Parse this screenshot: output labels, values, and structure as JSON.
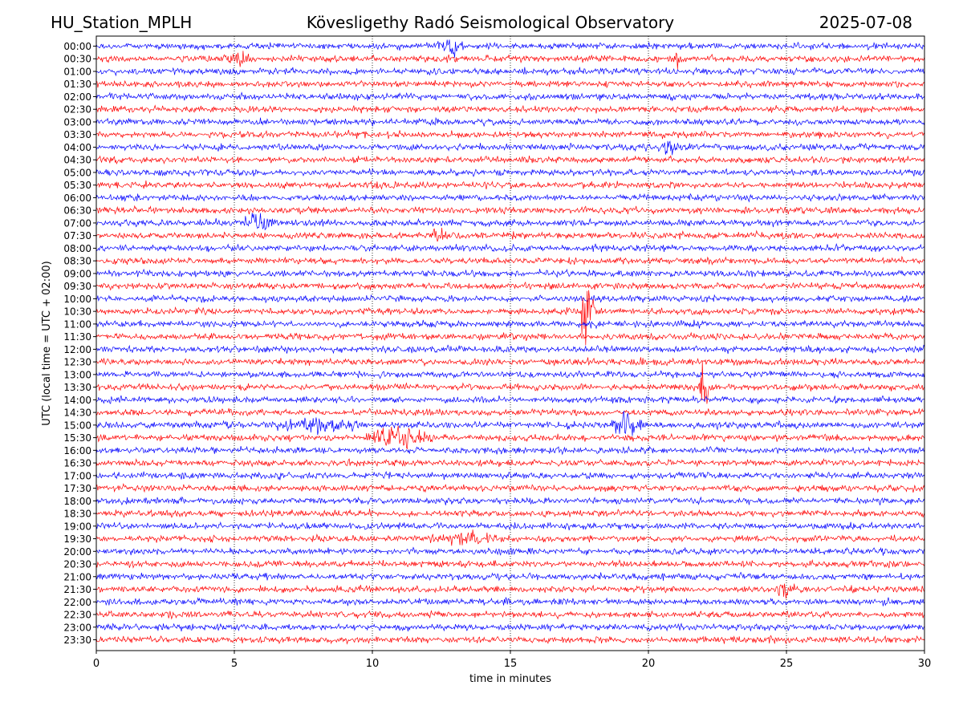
{
  "header": {
    "station": "HU_Station_MPLH",
    "title": "Kövesligethy Radó Seismological Observatory",
    "date": "2025-07-08"
  },
  "chart_data": {
    "type": "line",
    "title": "Kövesligethy Radó Seismological Observatory",
    "xlabel": "time in minutes",
    "ylabel": "UTC (local time = UTC + 02:00)",
    "xlim": [
      0,
      30
    ],
    "x_ticks": [
      0,
      5,
      10,
      15,
      20,
      25,
      30
    ],
    "grid": "vertical dotted lines at x ticks",
    "row_labels": [
      "00:00",
      "00:30",
      "01:00",
      "01:30",
      "02:00",
      "02:30",
      "03:00",
      "03:30",
      "04:00",
      "04:30",
      "05:00",
      "05:30",
      "06:00",
      "06:30",
      "07:00",
      "07:30",
      "08:00",
      "08:30",
      "09:00",
      "09:30",
      "10:00",
      "10:30",
      "11:00",
      "11:30",
      "12:00",
      "12:30",
      "13:00",
      "13:30",
      "14:00",
      "14:30",
      "15:00",
      "15:30",
      "16:00",
      "16:30",
      "17:00",
      "17:30",
      "18:00",
      "18:30",
      "19:00",
      "19:30",
      "20:00",
      "20:30",
      "21:00",
      "21:30",
      "22:00",
      "22:30",
      "23:00",
      "23:30"
    ],
    "trace_colors": [
      "#0000ff",
      "#ff0000"
    ],
    "events": [
      {
        "row": "00:00",
        "start_min": 12.2,
        "end_min": 13.4,
        "peak_amp": 0.45
      },
      {
        "row": "00:30",
        "start_min": 4.6,
        "end_min": 5.8,
        "peak_amp": 0.65
      },
      {
        "row": "00:30",
        "start_min": 20.8,
        "end_min": 21.4,
        "peak_amp": 0.3
      },
      {
        "row": "04:00",
        "start_min": 20.3,
        "end_min": 21.3,
        "peak_amp": 0.45
      },
      {
        "row": "07:00",
        "start_min": 5.2,
        "end_min": 6.5,
        "peak_amp": 0.55
      },
      {
        "row": "07:30",
        "start_min": 11.8,
        "end_min": 12.8,
        "peak_amp": 0.35
      },
      {
        "row": "10:30",
        "start_min": 17.5,
        "end_min": 18.1,
        "peak_amp": 2.8
      },
      {
        "row": "13:30",
        "start_min": 21.8,
        "end_min": 22.3,
        "peak_amp": 2.4
      },
      {
        "row": "15:00",
        "start_min": 6.2,
        "end_min": 9.8,
        "peak_amp": 0.4
      },
      {
        "row": "15:00",
        "start_min": 18.5,
        "end_min": 20.0,
        "peak_amp": 0.55
      },
      {
        "row": "15:30",
        "start_min": 9.5,
        "end_min": 12.3,
        "peak_amp": 0.55
      },
      {
        "row": "19:30",
        "start_min": 11.8,
        "end_min": 15.0,
        "peak_amp": 0.3
      },
      {
        "row": "21:30",
        "start_min": 24.6,
        "end_min": 25.4,
        "peak_amp": 0.5
      }
    ]
  }
}
